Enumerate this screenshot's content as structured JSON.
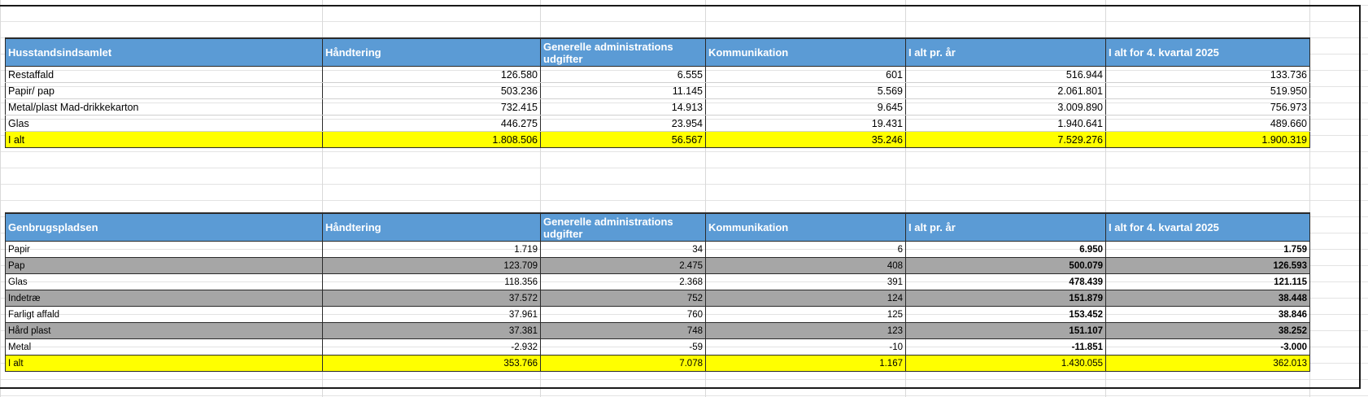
{
  "household": {
    "headers": [
      "Husstandsindsamlet",
      "Håndtering",
      "Generelle administrations udgifter",
      "Kommunikation",
      "I alt pr. år",
      "I alt for 4. kvartal 2025"
    ],
    "rows": [
      [
        "Restaffald",
        "126.580",
        "6.555",
        "601",
        "516.944",
        "133.736"
      ],
      [
        "Papir/ pap",
        "503.236",
        "11.145",
        "5.569",
        "2.061.801",
        "519.950"
      ],
      [
        "Metal/plast Mad-drikkekarton",
        "732.415",
        "14.913",
        "9.645",
        "3.009.890",
        "756.973"
      ],
      [
        "Glas",
        "446.275",
        "23.954",
        "19.431",
        "1.940.641",
        "489.660"
      ]
    ],
    "total": [
      "I alt",
      "1.808.506",
      "56.567",
      "35.246",
      "7.529.276",
      "1.900.319"
    ]
  },
  "recycling": {
    "headers": [
      "Genbrugspladsen",
      "Håndtering",
      "Generelle administrations udgifter",
      "Kommunikation",
      "I alt pr. år",
      "I alt for 4. kvartal 2025"
    ],
    "rows": [
      [
        "Papir",
        "1.719",
        "34",
        "6",
        "6.950",
        "1.759"
      ],
      [
        "Pap",
        "123.709",
        "2.475",
        "408",
        "500.079",
        "126.593"
      ],
      [
        "Glas",
        "118.356",
        "2.368",
        "391",
        "478.439",
        "121.115"
      ],
      [
        "Indetræ",
        "37.572",
        "752",
        "124",
        "151.879",
        "38.448"
      ],
      [
        "Farligt affald",
        "37.961",
        "760",
        "125",
        "153.452",
        "38.846"
      ],
      [
        "Hård plast",
        "37.381",
        "748",
        "123",
        "151.107",
        "38.252"
      ],
      [
        "Metal",
        "-2.932",
        "-59",
        "-10",
        "-11.851",
        "-3.000"
      ]
    ],
    "total": [
      "I alt",
      "353.766",
      "7.078",
      "1.167",
      "1.430.055",
      "362.013"
    ]
  },
  "colors": {
    "header_fill": "#5b9bd5",
    "total_fill": "#ffff00",
    "alt_row_fill": "#a6a6a6"
  }
}
